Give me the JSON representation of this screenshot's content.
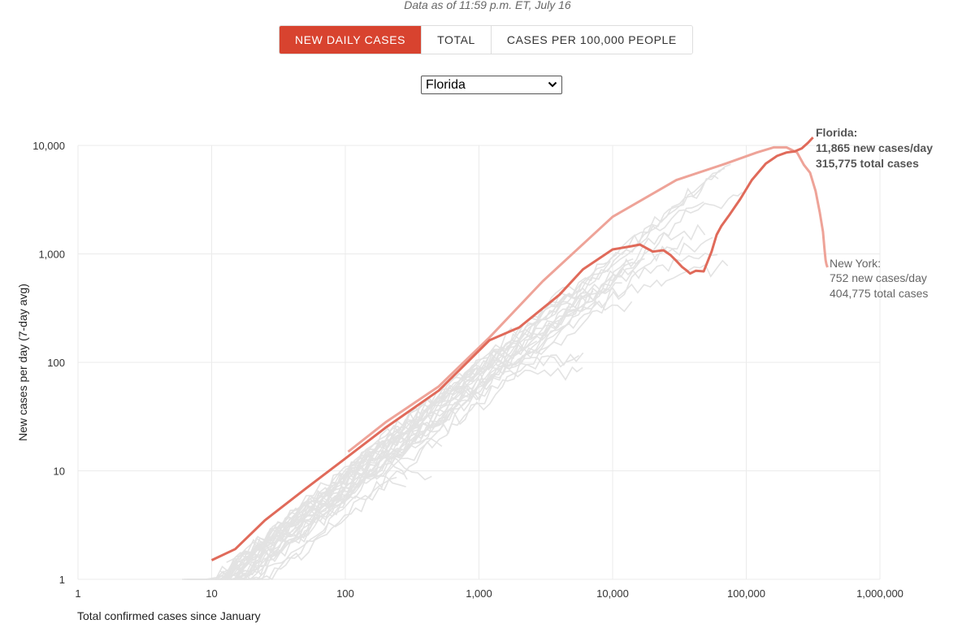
{
  "header": {
    "data_as_of": "Data as of 11:59 p.m. ET, July 16"
  },
  "tabs": [
    {
      "label": "NEW DAILY CASES",
      "active": true
    },
    {
      "label": "TOTAL",
      "active": false
    },
    {
      "label": "CASES PER 100,000 PEOPLE",
      "active": false
    }
  ],
  "state_select": {
    "value": "Florida"
  },
  "colors": {
    "accent": "#d8432f",
    "highlight": "#e06a5a",
    "highlight_light": "#eea398",
    "background_series": "#e3e3e3",
    "grid": "#ebebeb"
  },
  "icons": {
    "select_arrow": "chevron-down-icon"
  },
  "chart_data": {
    "type": "line",
    "xlabel": "Total confirmed cases since January",
    "ylabel": "New cases per day (7-day avg)",
    "x_scale": "log",
    "y_scale": "log",
    "xlim": [
      1,
      1000000
    ],
    "ylim": [
      1,
      10000
    ],
    "x_ticks": [
      "1",
      "10",
      "100",
      "1,000",
      "10,000",
      "100,000",
      "1,000,000"
    ],
    "y_ticks": [
      "1",
      "10",
      "100",
      "1,000",
      "10,000"
    ],
    "grid": true,
    "series": [
      {
        "name": "Florida",
        "highlight": true,
        "x": [
          10,
          15,
          25,
          50,
          100,
          200,
          500,
          1200,
          2000,
          4000,
          6000,
          10000,
          14000,
          16000,
          20000,
          24000,
          27000,
          30000,
          33000,
          36000,
          38000,
          42000,
          48000,
          55000,
          60000,
          65000,
          75000,
          90000,
          110000,
          140000,
          170000,
          200000,
          230000,
          260000,
          290000,
          315775
        ],
        "y": [
          1.5,
          1.9,
          3.5,
          6.8,
          13,
          25,
          55,
          160,
          210,
          420,
          720,
          1100,
          1180,
          1220,
          1050,
          1080,
          980,
          860,
          760,
          700,
          660,
          700,
          690,
          1050,
          1500,
          1800,
          2300,
          3200,
          4800,
          6800,
          8000,
          8600,
          8800,
          9400,
          10600,
          11865
        ],
        "annotation": {
          "name": "Florida:",
          "line1": "11,865 new cases/day",
          "line2": "315,775 total cases"
        }
      },
      {
        "name": "New York",
        "highlight": true,
        "x": [
          105,
          200,
          500,
          1200,
          3000,
          10000,
          30000,
          70000,
          120000,
          160000,
          200000,
          240000,
          270000,
          300000,
          330000,
          355000,
          375000,
          385000,
          392000,
          398000,
          404775
        ],
        "y": [
          15,
          28,
          60,
          170,
          560,
          2200,
          4800,
          6800,
          8600,
          9600,
          9600,
          8600,
          6600,
          5600,
          3800,
          2400,
          1600,
          1100,
          880,
          800,
          752
        ],
        "annotation": {
          "name": "New York:",
          "line1": "752 new cases/day",
          "line2": "404,775 total cases"
        }
      }
    ]
  }
}
